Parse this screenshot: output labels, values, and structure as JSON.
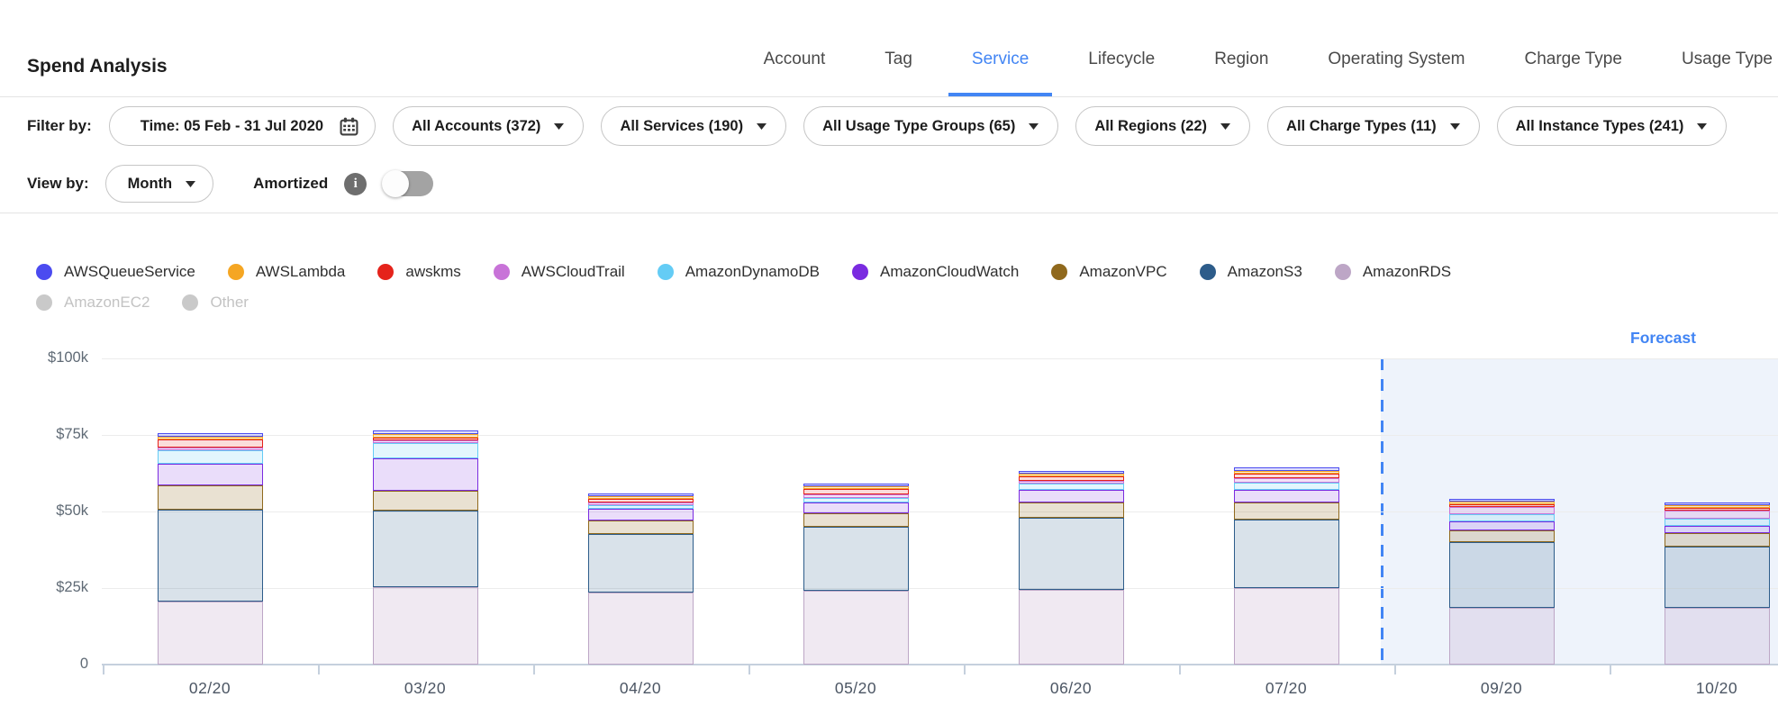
{
  "colors": {
    "accent": "#4285f4",
    "forecast_background": "#eef3fb",
    "gridline": "#ececec",
    "axis": "#c5d0dd",
    "disabled_legend": "#c9c9c9"
  },
  "header": {
    "title": "Spend Analysis",
    "tabs": [
      {
        "label": "Account",
        "active": false
      },
      {
        "label": "Tag",
        "active": false
      },
      {
        "label": "Service",
        "active": true
      },
      {
        "label": "Lifecycle",
        "active": false
      },
      {
        "label": "Region",
        "active": false
      },
      {
        "label": "Operating System",
        "active": false
      },
      {
        "label": "Charge Type",
        "active": false
      },
      {
        "label": "Usage Type",
        "active": false
      }
    ]
  },
  "filter_bar": {
    "label": "Filter by:",
    "time_filter": "Time: 05 Feb - 31 Jul 2020",
    "dropdowns": [
      "All Accounts (372)",
      "All Services (190)",
      "All Usage Type Groups (65)",
      "All Regions (22)",
      "All Charge Types (11)",
      "All Instance Types (241)"
    ]
  },
  "view_bar": {
    "label": "View by:",
    "dropdown_value": "Month",
    "amortized_label": "Amortized",
    "toggle_state": "off"
  },
  "legend": {
    "rows": [
      [
        {
          "name": "AWSQueueService",
          "color": "#4b4bf0",
          "disabled": false
        },
        {
          "name": "AWSLambda",
          "color": "#f5a623",
          "disabled": false
        },
        {
          "name": "awskms",
          "color": "#e5231b",
          "disabled": false
        },
        {
          "name": "AWSCloudTrail",
          "color": "#c873d8",
          "disabled": false
        },
        {
          "name": "AmazonDynamoDB",
          "color": "#64ccf5",
          "disabled": false
        },
        {
          "name": "AmazonCloudWatch",
          "color": "#7a2be0",
          "disabled": false
        },
        {
          "name": "AmazonVPC",
          "color": "#90691d",
          "disabled": false
        },
        {
          "name": "AmazonS3",
          "color": "#2d5c8a",
          "disabled": false
        },
        {
          "name": "AmazonRDS",
          "color": "#bda6c6",
          "disabled": false
        }
      ],
      [
        {
          "name": "AmazonEC2",
          "color": "#c9c9c9",
          "disabled": true
        },
        {
          "name": "Other",
          "color": "#c9c9c9",
          "disabled": true
        }
      ]
    ]
  },
  "chart_data": {
    "type": "bar",
    "stacked": true,
    "grid": true,
    "legend_position": "top",
    "unit": "thousand USD",
    "ylim": [
      0,
      100
    ],
    "y_ticks": [
      {
        "label": "$100k",
        "value": 100
      },
      {
        "label": "$75k",
        "value": 75
      },
      {
        "label": "$50k",
        "value": 50
      },
      {
        "label": "$25k",
        "value": 25
      },
      {
        "label": "0",
        "value": 0
      }
    ],
    "categories": [
      "02/20",
      "03/20",
      "04/20",
      "05/20",
      "06/20",
      "07/20",
      "09/20",
      "10/20"
    ],
    "series_note": "values in $k, series listed bottom-to-top of stack",
    "series": [
      {
        "name": "AmazonRDS",
        "color": "#bda6c6",
        "fill": "rgba(186,157,196,0.22)",
        "values": [
          20.5,
          25.3,
          23.4,
          24.0,
          24.5,
          25.0,
          18.5,
          18.5
        ]
      },
      {
        "name": "AmazonS3",
        "color": "#2d5c8a",
        "fill": "rgba(45,92,138,0.18)",
        "values": [
          30.0,
          25.0,
          19.3,
          21.0,
          23.5,
          22.5,
          21.5,
          20.0
        ]
      },
      {
        "name": "AmazonVPC",
        "color": "#90691d",
        "fill": "rgba(144,105,29,0.2)",
        "values": [
          8.0,
          6.4,
          4.4,
          4.5,
          5.0,
          5.5,
          3.9,
          4.4
        ]
      },
      {
        "name": "AmazonCloudWatch",
        "color": "#7a2be0",
        "fill": "rgba(122,43,224,0.16)",
        "values": [
          7.0,
          10.6,
          3.8,
          3.5,
          4.0,
          4.0,
          2.9,
          2.4
        ]
      },
      {
        "name": "AmazonDynamoDB",
        "color": "#64ccf5",
        "fill": "rgba(100,204,245,0.18)",
        "values": [
          4.5,
          5.0,
          1.2,
          1.5,
          2.0,
          2.5,
          2.2,
          2.4
        ]
      },
      {
        "name": "AWSCloudTrail",
        "color": "#c873d8",
        "fill": "rgba(200,115,216,0.2)",
        "values": [
          1.0,
          1.0,
          0.9,
          1.0,
          1.0,
          1.5,
          2.5,
          2.6
        ]
      },
      {
        "name": "awskms",
        "color": "#e5231b",
        "fill": "rgba(229,35,27,0.16)",
        "values": [
          2.5,
          0.8,
          1.2,
          1.8,
          1.5,
          1.5,
          0.8,
          0.3
        ]
      },
      {
        "name": "AWSLambda",
        "color": "#f5a623",
        "fill": "rgba(245,166,35,0.2)",
        "values": [
          0.5,
          1.0,
          0.4,
          0.4,
          0.5,
          0.5,
          0.3,
          0.8
        ]
      },
      {
        "name": "AWSQueueService",
        "color": "#4b4bf0",
        "fill": "rgba(75,75,240,0.18)",
        "values": [
          1.2,
          1.2,
          0.8,
          0.8,
          1.0,
          1.0,
          0.8,
          0.3
        ]
      }
    ],
    "forecast": {
      "label": "Forecast",
      "categories": [
        "09/20",
        "10/20"
      ]
    }
  }
}
